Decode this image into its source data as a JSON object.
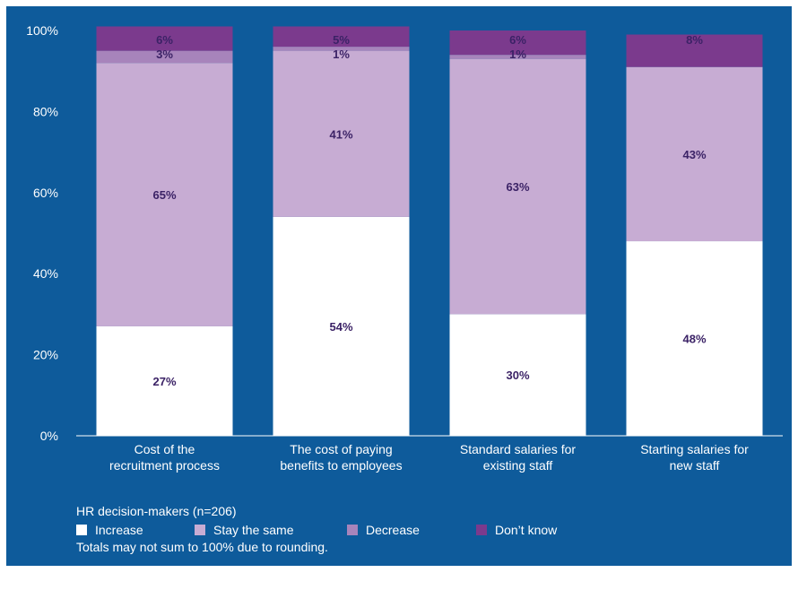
{
  "chart_data": {
    "type": "bar",
    "stacked": true,
    "categories": [
      [
        "Cost of the",
        "recruitment process"
      ],
      [
        "The cost of paying",
        "benefits to employees"
      ],
      [
        "Standard salaries for",
        "existing staff"
      ],
      [
        "Starting salaries for",
        "new staff"
      ]
    ],
    "series": [
      {
        "name": "Increase",
        "color": "#ffffff",
        "values": [
          27,
          54,
          30,
          48
        ],
        "labels": [
          "27%",
          "54%",
          "30%",
          "48%"
        ]
      },
      {
        "name": "Stay the same",
        "color": "#c7acd3",
        "values": [
          65,
          41,
          63,
          43
        ],
        "labels": [
          "65%",
          "41%",
          "63%",
          "43%"
        ]
      },
      {
        "name": "Decrease",
        "color": "#a784bb",
        "values": [
          3,
          1,
          1,
          0
        ],
        "labels": [
          "3%",
          "1%",
          "1%",
          ""
        ]
      },
      {
        "name": "Don’t know",
        "color": "#7b3a8d",
        "values": [
          6,
          5,
          6,
          8
        ],
        "labels": [
          "6%",
          "5%",
          "6%",
          "8%"
        ]
      }
    ],
    "ylim": [
      0,
      100
    ],
    "yticks": [
      0,
      20,
      40,
      60,
      80,
      100
    ],
    "ytick_labels": [
      "0%",
      "20%",
      "40%",
      "60%",
      "80%",
      "100%"
    ],
    "grid": false,
    "legend_position": "bottom"
  },
  "legend": {
    "title": "HR decision-makers (n=206)"
  },
  "footnote": "Totals may not sum to 100% due to rounding."
}
